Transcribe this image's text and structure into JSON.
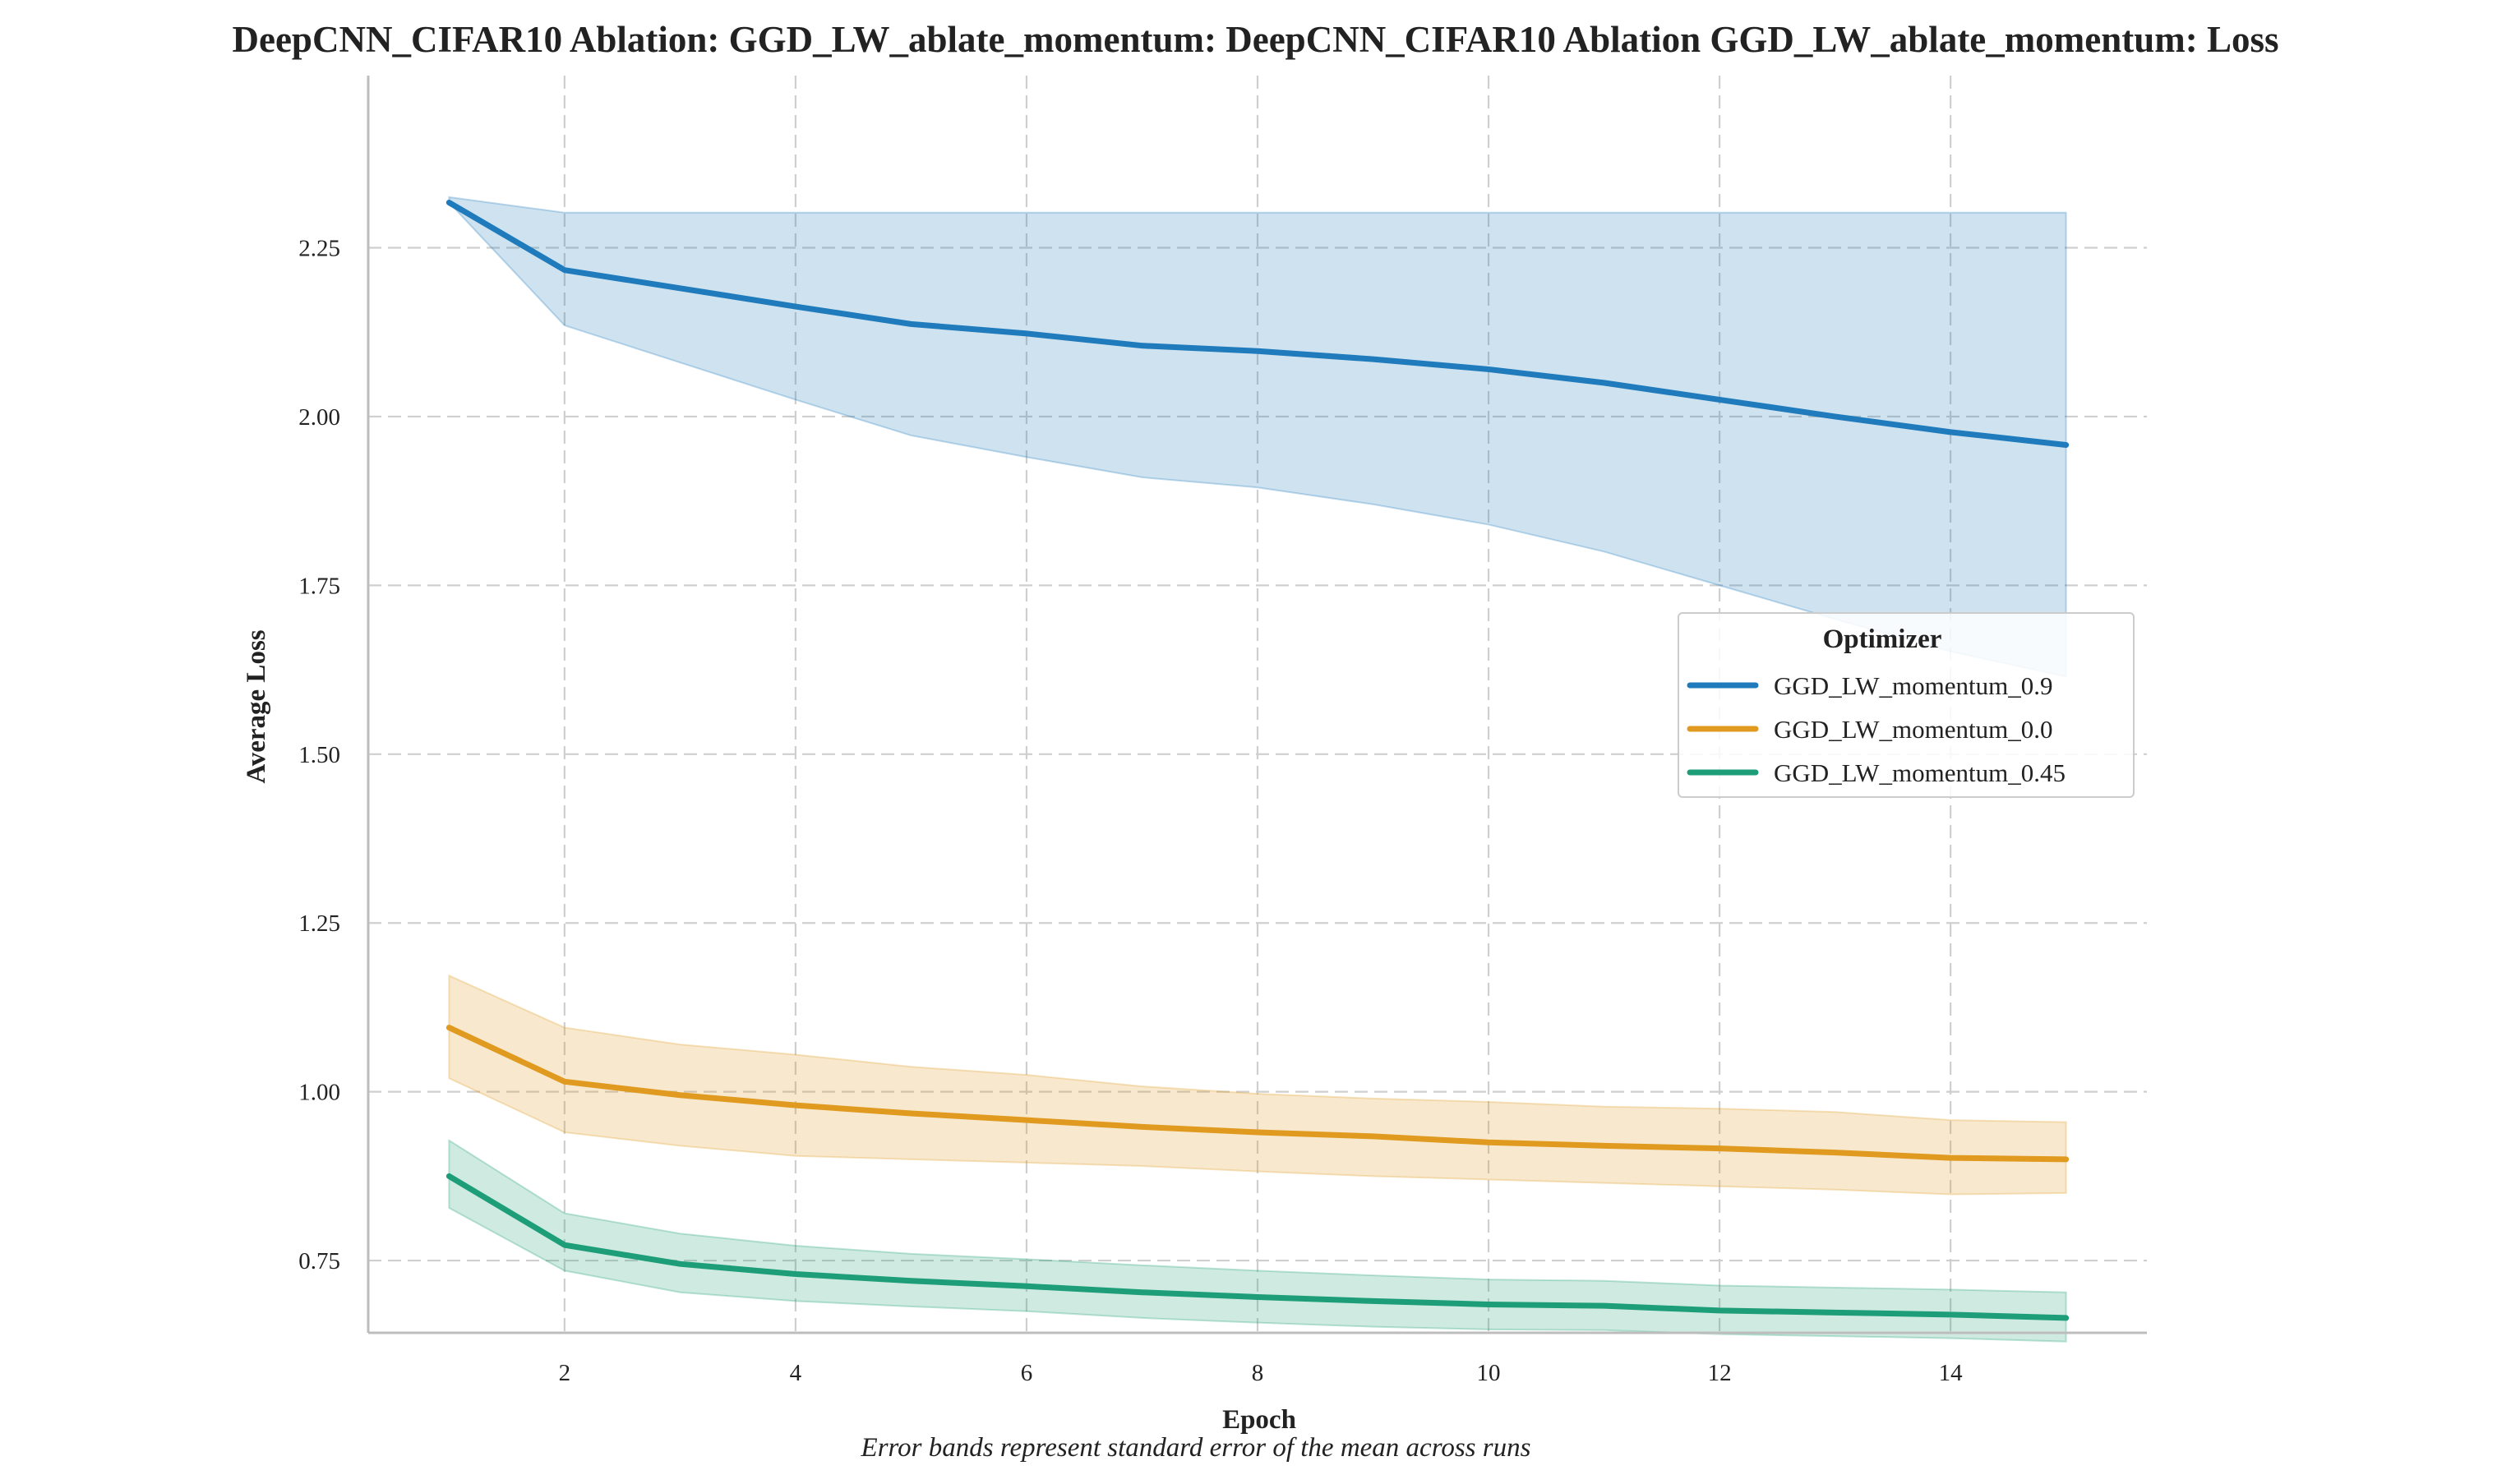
{
  "chart_data": {
    "type": "line",
    "title": "DeepCNN_CIFAR10 Ablation: GGD_LW_ablate_momentum: DeepCNN_CIFAR10 Ablation GGD_LW_ablate_momentum: Loss",
    "xlabel": "Epoch",
    "ylabel": "Average Loss",
    "caption": "Error bands represent standard error of the mean across runs",
    "xlim": [
      0.3,
      15.7
    ],
    "ylim": [
      0.643,
      2.505
    ],
    "xticks": [
      2,
      4,
      6,
      8,
      10,
      12,
      14
    ],
    "yticks": [
      0.75,
      1.0,
      1.25,
      1.5,
      1.75,
      2.0,
      2.25
    ],
    "grid": true,
    "legend": {
      "title": "Optimizer",
      "placement": "center-right"
    },
    "x": [
      1,
      2,
      3,
      4,
      5,
      6,
      7,
      8,
      9,
      10,
      11,
      12,
      13,
      14,
      15
    ],
    "series": [
      {
        "name": "GGD_LW_momentum_0.9",
        "color": "#1f7bbb",
        "values": [
          2.317,
          2.217,
          2.19,
          2.163,
          2.137,
          2.123,
          2.105,
          2.097,
          2.085,
          2.07,
          2.05,
          2.025,
          2.0,
          1.977,
          1.958
        ],
        "lower": [
          2.317,
          2.135,
          2.08,
          2.025,
          1.972,
          1.94,
          1.91,
          1.895,
          1.87,
          1.84,
          1.8,
          1.75,
          1.7,
          1.652,
          1.615
        ],
        "upper": [
          2.325,
          2.302,
          2.302,
          2.302,
          2.302,
          2.302,
          2.302,
          2.302,
          2.302,
          2.302,
          2.302,
          2.302,
          2.302,
          2.302,
          2.302
        ]
      },
      {
        "name": "GGD_LW_momentum_0.0",
        "color": "#e09a20",
        "values": [
          1.095,
          1.015,
          0.995,
          0.98,
          0.968,
          0.958,
          0.948,
          0.94,
          0.934,
          0.925,
          0.92,
          0.916,
          0.91,
          0.902,
          0.9
        ],
        "lower": [
          1.02,
          0.94,
          0.92,
          0.905,
          0.9,
          0.895,
          0.89,
          0.882,
          0.875,
          0.87,
          0.865,
          0.86,
          0.855,
          0.848,
          0.85
        ],
        "upper": [
          1.172,
          1.095,
          1.07,
          1.055,
          1.037,
          1.025,
          1.008,
          0.997,
          0.99,
          0.985,
          0.978,
          0.975,
          0.97,
          0.958,
          0.955
        ]
      },
      {
        "name": "GGD_LW_momentum_0.45",
        "color": "#1e9e78",
        "values": [
          0.875,
          0.773,
          0.745,
          0.73,
          0.72,
          0.712,
          0.703,
          0.696,
          0.69,
          0.685,
          0.683,
          0.676,
          0.673,
          0.67,
          0.665
        ],
        "lower": [
          0.828,
          0.735,
          0.703,
          0.69,
          0.682,
          0.675,
          0.665,
          0.658,
          0.652,
          0.648,
          0.647,
          0.641,
          0.638,
          0.635,
          0.63
        ],
        "upper": [
          0.928,
          0.82,
          0.79,
          0.772,
          0.76,
          0.752,
          0.743,
          0.735,
          0.728,
          0.722,
          0.72,
          0.713,
          0.71,
          0.707,
          0.703
        ]
      }
    ]
  }
}
